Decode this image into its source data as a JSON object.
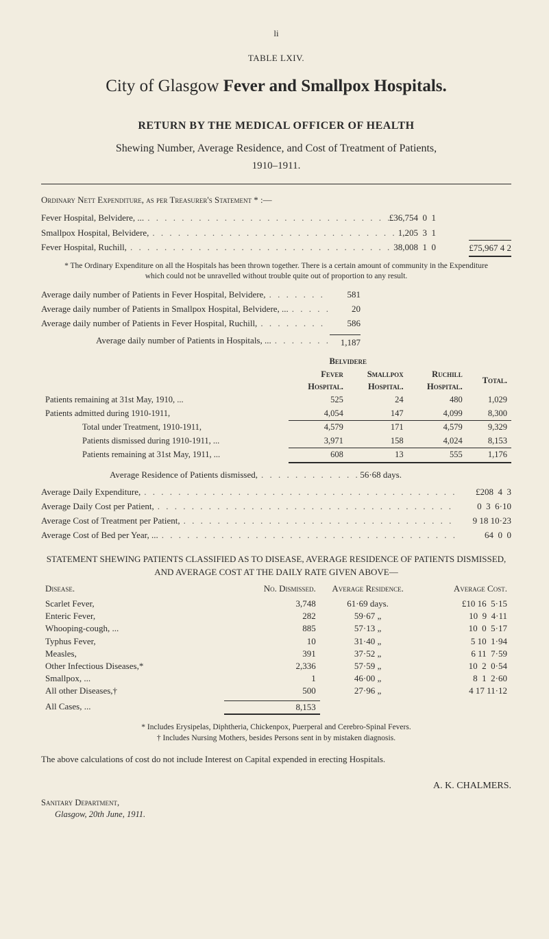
{
  "page_num": "li",
  "table_label": "TABLE LXIV.",
  "title_plain": "City of Glasgow",
  "title_bold": "Fever and Smallpox Hospitals.",
  "return_line": "RETURN BY THE MEDICAL OFFICER OF HEALTH",
  "shewing": "Shewing Number, Average Residence, and Cost of Treatment of Patients,",
  "year": "1910–1911.",
  "ord_head": "Ordinary Nett Expenditure, as per Treasurer's Statement * :—",
  "ord_rows": [
    {
      "label": "Fever Hospital, Belvidere, ...",
      "val": "£36,754  0  1"
    },
    {
      "label": "Smallpox Hospital, Belvidere,",
      "val": "1,205  3  1"
    },
    {
      "label": "Fever Hospital, Ruchill,",
      "val": "38,008  1  0"
    }
  ],
  "ord_total": "£75,967  4  2",
  "ord_footnote": "* The Ordinary Expenditure on all the Hospitals has been thrown together.  There is a certain amount of community in the Expenditure which could not be unravelled without trouble quite out of proportion to any result.",
  "avg_daily": [
    {
      "label": "Average daily number of Patients in Fever Hospital, Belvidere,",
      "val": "581"
    },
    {
      "label": "Average daily number of Patients in Smallpox Hospital, Belvidere, ...",
      "val": "20"
    },
    {
      "label": "Average daily number of Patients in Fever Hospital, Ruchill,",
      "val": "586"
    }
  ],
  "avg_daily_total_label": "Average daily number of Patients in Hospitals, ...",
  "avg_daily_total": "1,187",
  "bel_header_top": "Belvidere",
  "bel_cols": [
    "",
    "Fever\nHospital.",
    "Smallpox\nHospital.",
    "Ruchill\nHospital.",
    "Total."
  ],
  "bel_rows": [
    {
      "l": "Patients remaining at 31st May, 1910, ...",
      "v": [
        "525",
        "24",
        "480",
        "1,029"
      ]
    },
    {
      "l": "Patients admitted during 1910-1911,",
      "v": [
        "4,054",
        "147",
        "4,099",
        "8,300"
      ]
    }
  ],
  "bel_sum1": {
    "l": "Total under Treatment, 1910-1911,",
    "v": [
      "4,579",
      "171",
      "4,579",
      "9,329"
    ]
  },
  "bel_dis": {
    "l": "Patients dismissed during 1910-1911, ...",
    "v": [
      "3,971",
      "158",
      "4,024",
      "8,153"
    ]
  },
  "bel_rem": {
    "l": "Patients remaining at 31st May, 1911, ...",
    "v": [
      "608",
      "13",
      "555",
      "1,176"
    ]
  },
  "avg_res_label": "Average Residence of Patients dismissed,",
  "avg_res_val": "56·68 days.",
  "costs_rows": [
    {
      "label": "Average Daily Expenditure,",
      "val": "£208  4  3"
    },
    {
      "label": "Average Daily Cost per Patient,",
      "val": "0  3  6·10"
    },
    {
      "label": "Average Cost of Treatment per Patient,",
      "val": "9 18 10·23"
    },
    {
      "label": "Average Cost of Bed per Year, ...",
      "val": "64  0  0"
    }
  ],
  "stmt_head": "STATEMENT SHEWING PATIENTS CLASSIFIED AS TO DISEASE, AVERAGE RESIDENCE OF PATIENTS DISMISSED, AND AVERAGE COST AT THE DAILY RATE GIVEN ABOVE—",
  "stmt_cols": [
    "Disease.",
    "No. Dismissed.",
    "Average Residence.",
    "Average Cost."
  ],
  "stmt_rows": [
    {
      "d": "Scarlet Fever,",
      "n": "3,748",
      "r": "61·69 days.",
      "c": "£10 16  5·15"
    },
    {
      "d": "Enteric Fever,",
      "n": "282",
      "r": "59·67   „",
      "c": "10  9  4·11"
    },
    {
      "d": "Whooping-cough, ...",
      "n": "885",
      "r": "57·13   „",
      "c": "10  0  5·17"
    },
    {
      "d": "Typhus Fever,",
      "n": "10",
      "r": "31·40   „",
      "c": "5 10  1·94"
    },
    {
      "d": "Measles,",
      "n": "391",
      "r": "37·52   „",
      "c": "6 11  7·59"
    },
    {
      "d": "Other Infectious Diseases,*",
      "n": "2,336",
      "r": "57·59   „",
      "c": "10  2  0·54"
    },
    {
      "d": "Smallpox, ...",
      "n": "1",
      "r": "46·00   „",
      "c": "8  1  2·60"
    },
    {
      "d": "All other Diseases,†",
      "n": "500",
      "r": "27·96   „",
      "c": "4 17 11·12"
    }
  ],
  "stmt_total_label": "All Cases, ...",
  "stmt_total_n": "8,153",
  "stmt_foot1": "* Includes Erysipelas, Diphtheria, Chickenpox, Puerperal and Cerebro-Spinal Fevers.",
  "stmt_foot2": "† Includes Nursing Mothers, besides Persons sent in by mistaken diagnosis.",
  "calc_note": "The above calculations of cost do not include Interest on Capital expended in erecting Hospitals.",
  "signature": "A. K. CHALMERS.",
  "dept1": "Sanitary Department,",
  "dept2": "Glasgow, 20th June, 1911.",
  "style": {
    "bg": "#f2ede0",
    "text": "#2a2a2a",
    "title_fontsize": 25,
    "h2_fontsize": 16,
    "body_fontsize": 13
  }
}
